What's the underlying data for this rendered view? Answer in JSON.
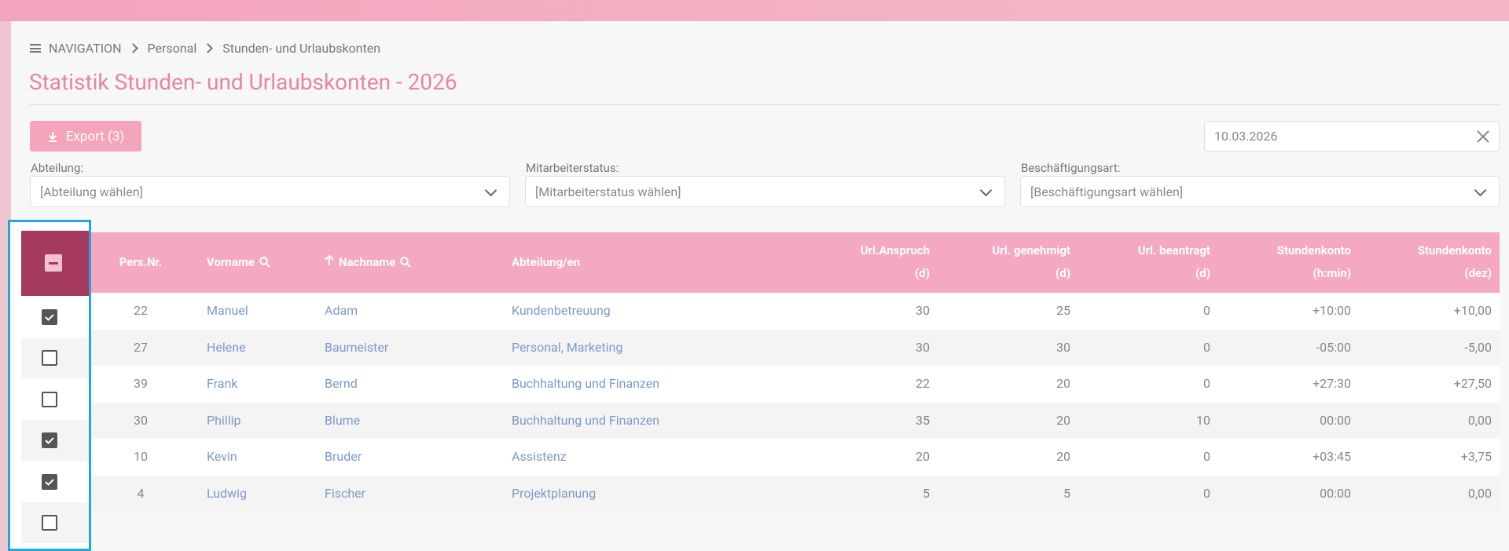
{
  "breadcrumb": [
    "NAVIGATION",
    "Personal",
    "Stunden- und Urlaubskonten"
  ],
  "title": "Statistik Stunden- und Urlaubskonten - 2026",
  "export_button": "Export (3)",
  "date": "10.03.2026",
  "filters": [
    {
      "label": "Abteilung:",
      "placeholder": "[Abteilung wählen]"
    },
    {
      "label": "Mitarbeiterstatus:",
      "placeholder": "[Mitarbeiterstatus wählen]"
    },
    {
      "label": "Beschäftigungsart:",
      "placeholder": "[Beschäftigungsart wählen]"
    }
  ],
  "table": {
    "headers": [
      {
        "label": "Pers.Nr."
      },
      {
        "label": "Vorname"
      },
      {
        "label": "Nachname"
      },
      {
        "label": "Abteilung/en"
      },
      {
        "label": "Url.Anspruch",
        "sub": "(d)"
      },
      {
        "label": "Url. genehmigt",
        "sub": "(d)"
      },
      {
        "label": "Url. beantragt",
        "sub": "(d)"
      },
      {
        "label": "Stundenkonto",
        "sub": "(h:min)"
      },
      {
        "label": "Stundenkonto",
        "sub": "(dez)"
      }
    ],
    "rows": [
      {
        "checked": true,
        "cells": [
          "22",
          "Manuel",
          "Adam",
          "Kundenbetreuung",
          "30",
          "25",
          "0",
          "+10:00",
          "+10,00"
        ]
      },
      {
        "checked": false,
        "cells": [
          "27",
          "Helene",
          "Baumeister",
          "Personal, Marketing",
          "30",
          "30",
          "0",
          "-05:00",
          "-5,00"
        ]
      },
      {
        "checked": false,
        "cells": [
          "39",
          "Frank",
          "Bernd",
          "Buchhaltung und Finanzen",
          "22",
          "20",
          "0",
          "+27:30",
          "+27,50"
        ]
      },
      {
        "checked": true,
        "cells": [
          "30",
          "Phillip",
          "Blume",
          "Buchhaltung und Finanzen",
          "35",
          "20",
          "10",
          "00:00",
          "0,00"
        ]
      },
      {
        "checked": true,
        "cells": [
          "10",
          "Kevin",
          "Bruder",
          "Assistenz",
          "20",
          "20",
          "0",
          "+03:45",
          "+3,75"
        ]
      },
      {
        "checked": false,
        "cells": [
          "4",
          "Ludwig",
          "Fischer",
          "Projektplanung",
          "5",
          "5",
          "0",
          "00:00",
          "0,00"
        ]
      }
    ]
  }
}
